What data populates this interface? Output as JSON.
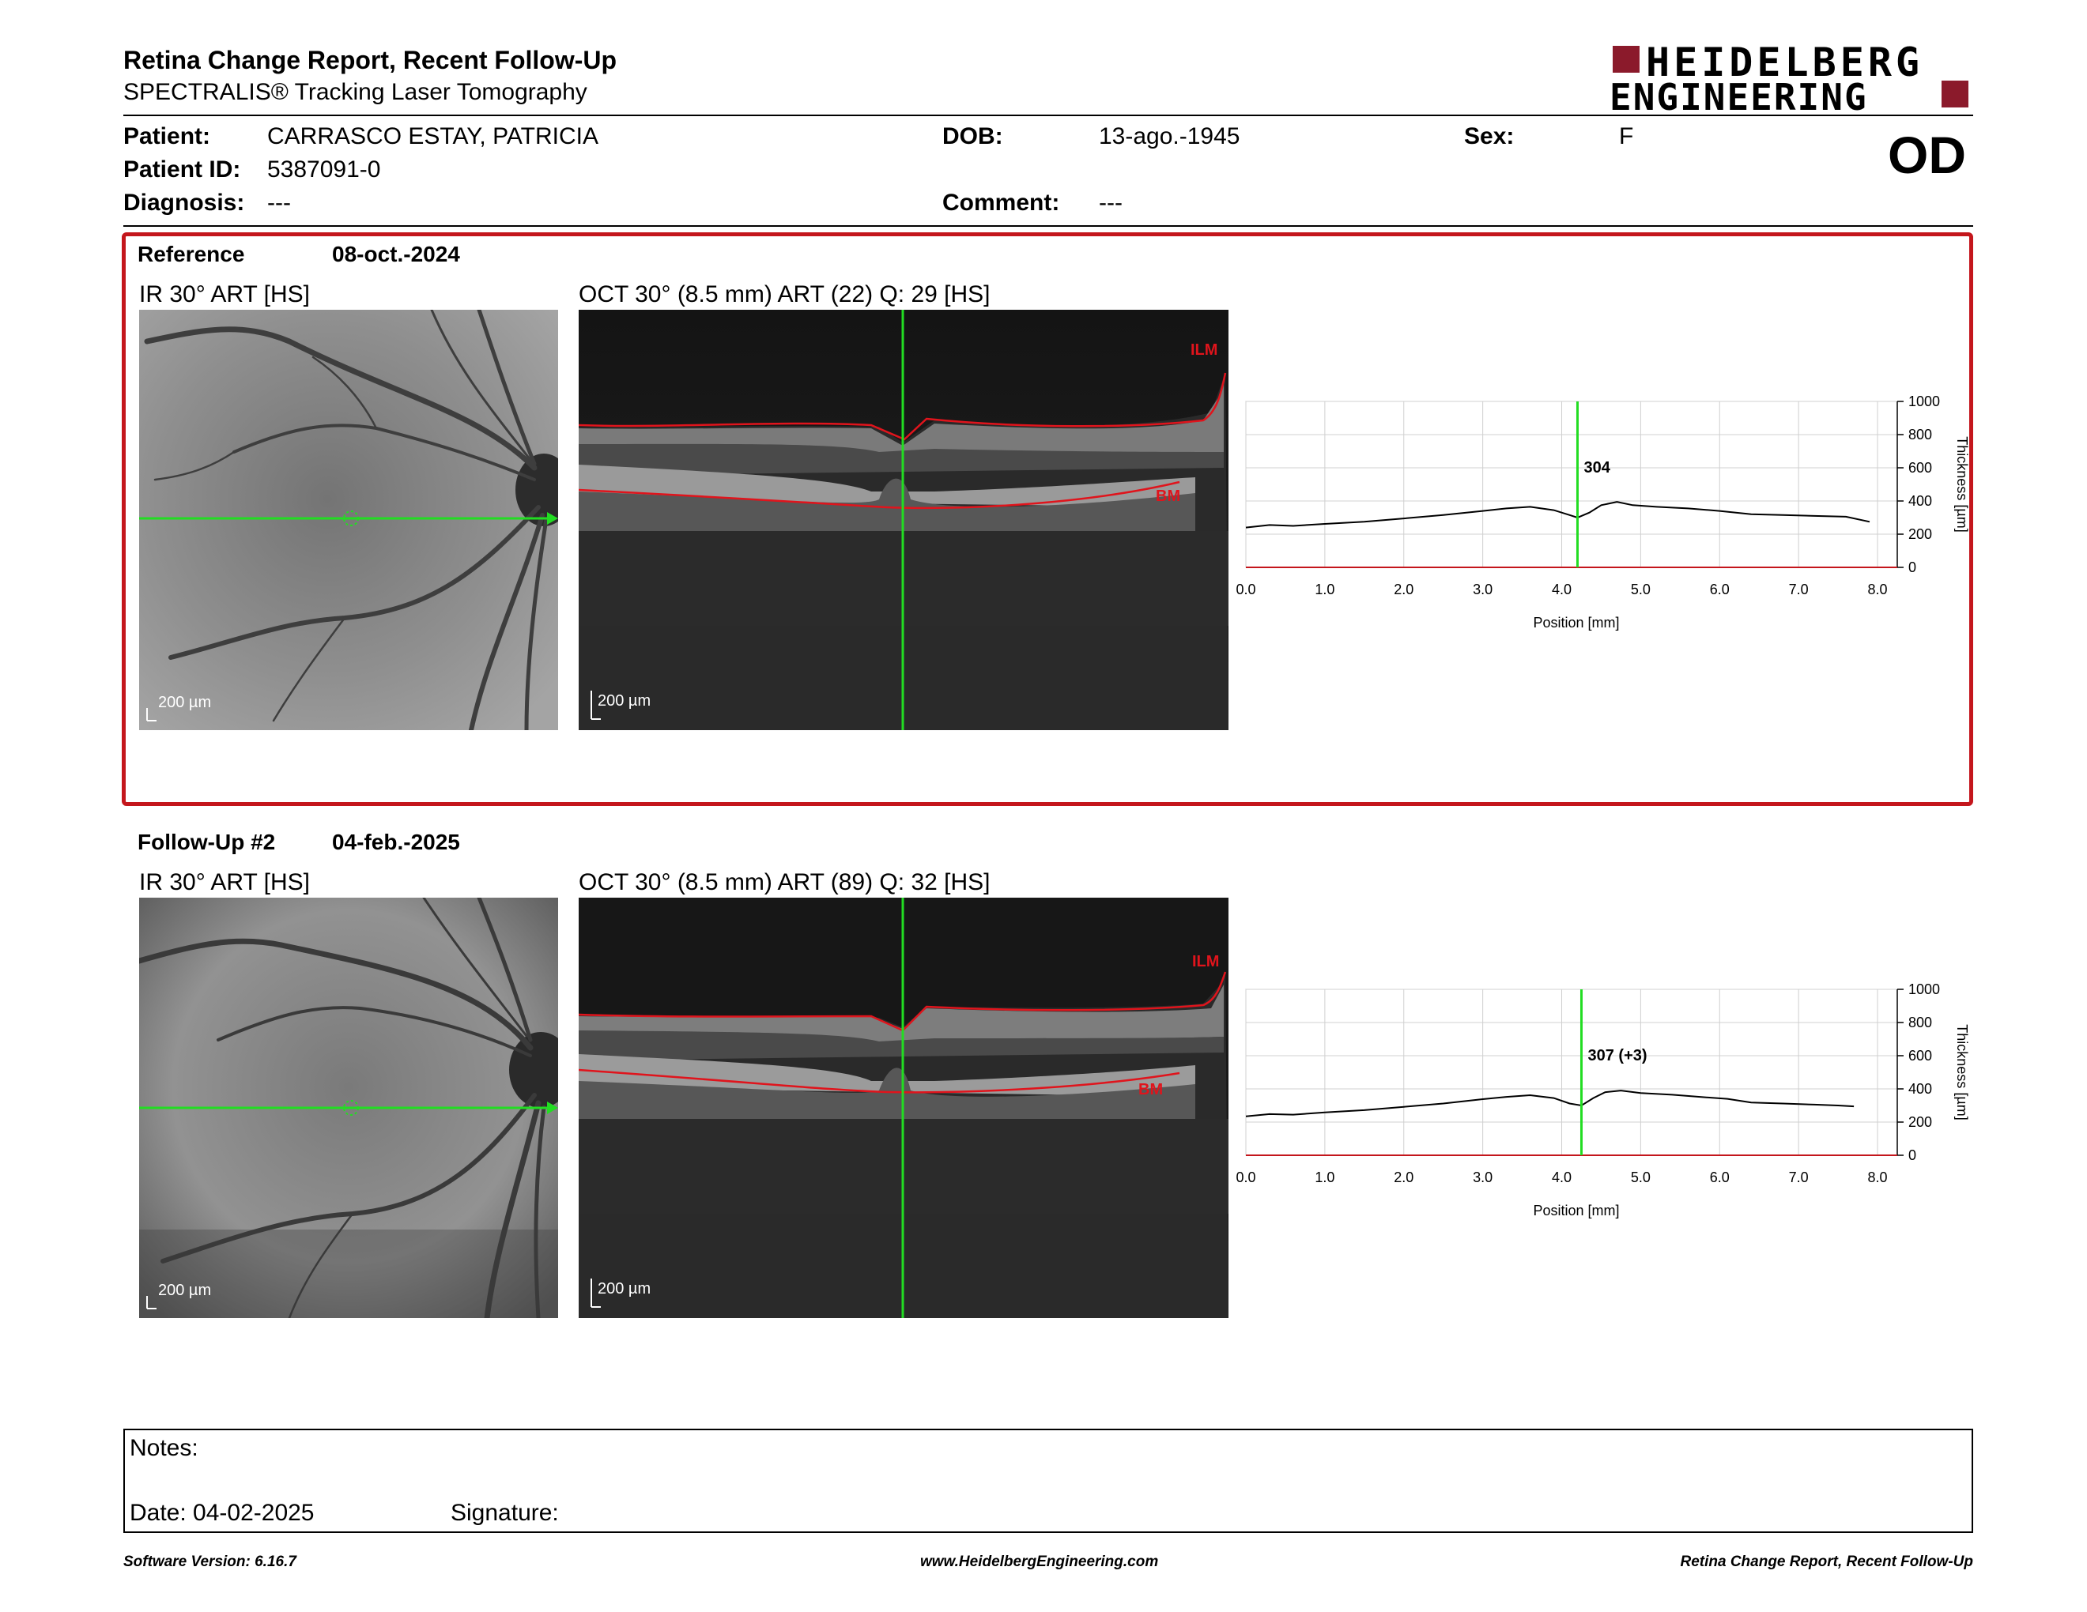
{
  "header": {
    "title": "Retina Change Report, Recent Follow-Up",
    "subtitle": "SPECTRALIS® Tracking Laser Tomography",
    "logo_line1": "HEIDELBERG",
    "logo_line2": "ENGINEERING",
    "eye": "OD"
  },
  "patient": {
    "patient_label": "Patient:",
    "patient_value": "CARRASCO ESTAY, PATRICIA",
    "dob_label": "DOB:",
    "dob_value": "13-ago.-1945",
    "sex_label": "Sex:",
    "sex_value": "F",
    "id_label": "Patient ID:",
    "id_value": "5387091-0",
    "diagnosis_label": "Diagnosis:",
    "diagnosis_value": "---",
    "comment_label": "Comment:",
    "comment_value": "---"
  },
  "reference": {
    "label": "Reference",
    "date": "08-oct.-2024",
    "ir_caption": "IR 30° ART [HS]",
    "oct_caption": "OCT 30° (8.5 mm) ART (22) Q: 29 [HS]",
    "scale": "200 µm",
    "ilm": "ILM",
    "bm": "BM",
    "marker_value": "304"
  },
  "followup": {
    "label": "Follow-Up #2",
    "date": "04-feb.-2025",
    "ir_caption": "IR 30° ART [HS]",
    "oct_caption": "OCT 30° (8.5 mm) ART (89) Q: 32 [HS]",
    "scale": "200 µm",
    "ilm": "ILM",
    "bm": "BM",
    "marker_value": "307 (+3)"
  },
  "chart_data": [
    {
      "type": "line",
      "xlabel": "Position [mm]",
      "ylabel": "Thickness [µm]",
      "xlim": [
        0,
        8.25
      ],
      "ylim": [
        0,
        1000
      ],
      "x_ticks": [
        "0.0",
        "1.0",
        "2.0",
        "3.0",
        "4.0",
        "5.0",
        "6.0",
        "7.0",
        "8.0"
      ],
      "y_ticks": [
        "0",
        "200",
        "400",
        "600",
        "800",
        "1000"
      ],
      "marker": {
        "x": 4.2,
        "label": "304"
      },
      "grid": true,
      "series": [
        {
          "x": [
            0,
            0.3,
            0.6,
            1.0,
            1.5,
            2.0,
            2.5,
            3.0,
            3.3,
            3.6,
            3.9,
            4.1,
            4.2,
            4.35,
            4.5,
            4.7,
            4.9,
            5.2,
            5.6,
            6.0,
            6.4,
            6.8,
            7.2,
            7.6,
            7.9
          ],
          "values": [
            240,
            255,
            250,
            262,
            275,
            295,
            315,
            340,
            355,
            365,
            345,
            315,
            300,
            330,
            375,
            395,
            375,
            365,
            355,
            340,
            320,
            315,
            310,
            305,
            275
          ]
        }
      ]
    },
    {
      "type": "line",
      "xlabel": "Position [mm]",
      "ylabel": "Thickness [µm]",
      "xlim": [
        0,
        8.25
      ],
      "ylim": [
        0,
        1000
      ],
      "x_ticks": [
        "0.0",
        "1.0",
        "2.0",
        "3.0",
        "4.0",
        "5.0",
        "6.0",
        "7.0",
        "8.0"
      ],
      "y_ticks": [
        "0",
        "200",
        "400",
        "600",
        "800",
        "1000"
      ],
      "marker": {
        "x": 4.25,
        "label": "307 (+3)"
      },
      "grid": true,
      "series": [
        {
          "x": [
            0,
            0.3,
            0.6,
            1.0,
            1.5,
            2.0,
            2.5,
            3.0,
            3.3,
            3.6,
            3.9,
            4.1,
            4.25,
            4.4,
            4.55,
            4.75,
            5.0,
            5.4,
            5.8,
            6.1,
            6.4,
            6.8,
            7.2,
            7.5,
            7.7
          ],
          "values": [
            235,
            248,
            245,
            258,
            272,
            292,
            312,
            338,
            352,
            362,
            345,
            312,
            300,
            345,
            380,
            390,
            375,
            365,
            350,
            340,
            318,
            312,
            305,
            300,
            295
          ]
        }
      ]
    }
  ],
  "notes": {
    "label": "Notes:",
    "date_label": "Date: 04-02-2025",
    "signature_label": "Signature:"
  },
  "footer": {
    "software": "Software Version: 6.16.7",
    "website": "www.HeidelbergEngineering.com",
    "report": "Retina Change Report, Recent Follow-Up"
  },
  "colors": {
    "brand_red": "#8b1a2b",
    "box_red": "#c4161c",
    "segmentation_red": "#e0141c",
    "scan_green": "#22dd22"
  }
}
